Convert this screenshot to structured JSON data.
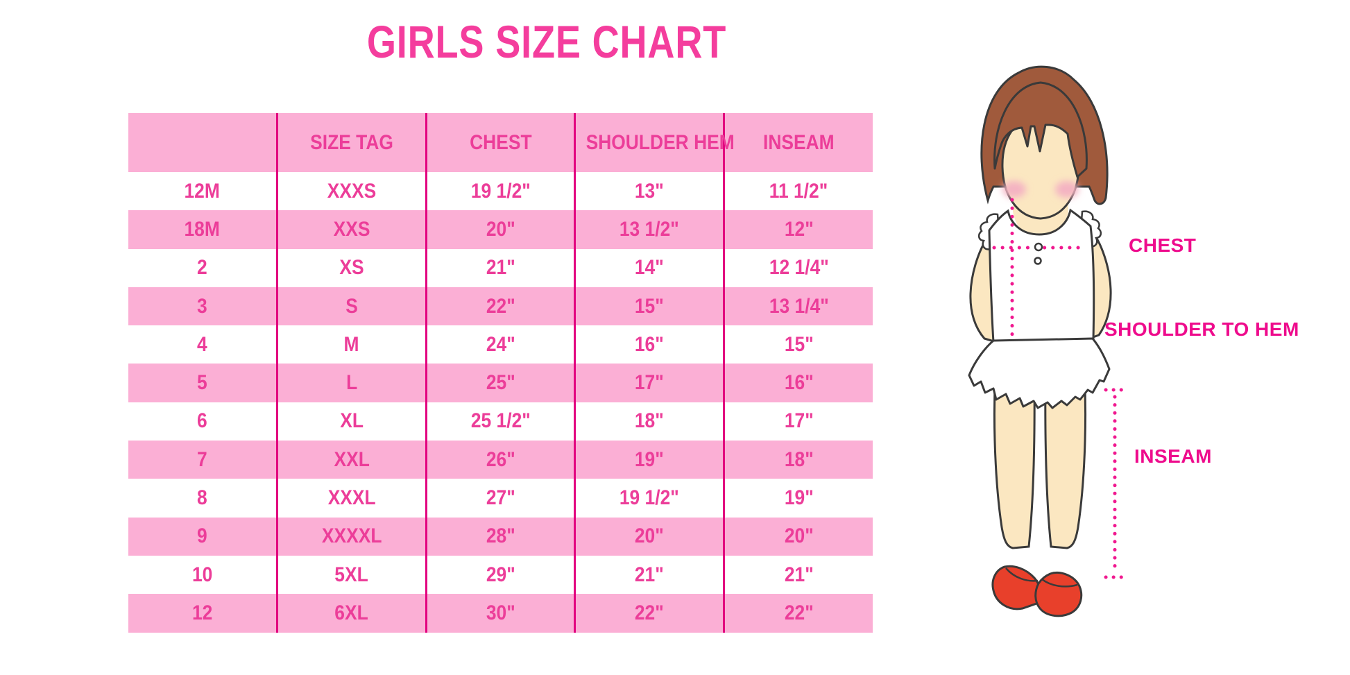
{
  "title": "GIRLS SIZE CHART",
  "chart_data": {
    "type": "table",
    "title": "GIRLS SIZE CHART",
    "columns": [
      "",
      "SIZE TAG",
      "CHEST",
      "SHOULDER HEM",
      "INSEAM"
    ],
    "rows": [
      [
        "12M",
        "XXXS",
        "19 1/2\"",
        "13\"",
        "11 1/2\""
      ],
      [
        "18M",
        "XXS",
        "20\"",
        "13 1/2\"",
        "12\""
      ],
      [
        "2",
        "XS",
        "21\"",
        "14\"",
        "12 1/4\""
      ],
      [
        "3",
        "S",
        "22\"",
        "15\"",
        "13 1/4\""
      ],
      [
        "4",
        "M",
        "24\"",
        "16\"",
        "15\""
      ],
      [
        "5",
        "L",
        "25\"",
        "17\"",
        "16\""
      ],
      [
        "6",
        "XL",
        "25 1/2\"",
        "18\"",
        "17\""
      ],
      [
        "7",
        "XXL",
        "26\"",
        "19\"",
        "18\""
      ],
      [
        "8",
        "XXXL",
        "27\"",
        "19 1/2\"",
        "19\""
      ],
      [
        "9",
        "XXXXL",
        "28\"",
        "20\"",
        "20\""
      ],
      [
        "10",
        "5XL",
        "29\"",
        "21\"",
        "21\""
      ],
      [
        "12",
        "6XL",
        "30\"",
        "22\"",
        "22\""
      ]
    ],
    "row_striping": "alternating white/pink starting with white",
    "grid": "vertical magenta column dividers only",
    "legend_position": "none"
  },
  "figure": {
    "labels": {
      "chest": "CHEST",
      "shoulder_to_hem": "SHOULDER TO HEM",
      "inseam": "INSEAM"
    }
  },
  "colors": {
    "background": "#FFFFFF",
    "title_pink": "#F43D9D",
    "row_pink": "#FBAFD5",
    "divider_magenta": "#E2007F",
    "cell_text_pink": "#EC3D99",
    "label_magenta": "#EE0B8C",
    "dotted_line_pink": "#F0188F",
    "hair_brown": "#A05A3C",
    "skin": "#FBE7C1",
    "blush": "#F4B3C2",
    "shoe_red": "#E8402B",
    "outline": "#333333"
  }
}
